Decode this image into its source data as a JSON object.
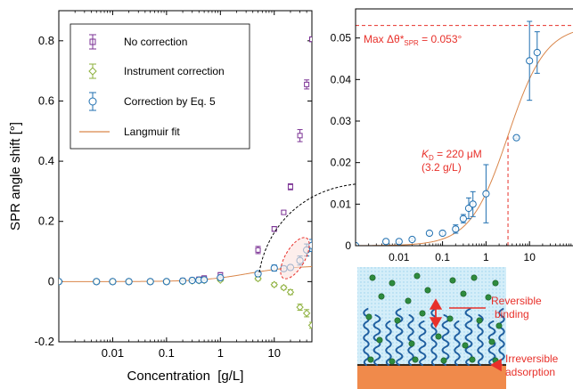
{
  "chart_data": [
    {
      "type": "scatter",
      "xlabel": "Concentration  [g/L]",
      "ylabel": "SPR angle shift [°]",
      "x_scale": "log",
      "xlim": [
        0.001,
        50
      ],
      "ylim": [
        -0.2,
        0.9
      ],
      "x_ticks": [
        0.01,
        0.1,
        1,
        10
      ],
      "x_tick_labels": [
        "0.01",
        "0.1",
        "1",
        "10"
      ],
      "y_ticks": [
        -0.2,
        0,
        0.2,
        0.4,
        0.6,
        0.8
      ],
      "y_tick_labels": [
        "-0.2",
        "0",
        "0.2",
        "0.4",
        "0.6",
        "0.8"
      ],
      "legend_position": "top-left",
      "series": [
        {
          "name": "No correction",
          "color": "#7b3294",
          "marker": "square",
          "x": [
            0.001,
            0.005,
            0.01,
            0.02,
            0.05,
            0.1,
            0.2,
            0.3,
            0.4,
            0.5,
            1,
            5,
            10,
            15,
            20,
            30,
            40,
            50
          ],
          "y": [
            0,
            0,
            0,
            0,
            0,
            0,
            0.003,
            0.005,
            0.008,
            0.012,
            0.022,
            0.105,
            0.175,
            0.23,
            0.315,
            0.485,
            0.655,
            0.805
          ],
          "err": [
            0,
            0,
            0,
            0,
            0,
            0,
            0.003,
            0.003,
            0.004,
            0.005,
            0.008,
            0.012,
            0.008,
            0.006,
            0.01,
            0.02,
            0.015,
            0.008
          ]
        },
        {
          "name": "Instrument correction",
          "color": "#8db03c",
          "marker": "diamond",
          "x": [
            0.001,
            0.005,
            0.01,
            0.02,
            0.05,
            0.1,
            0.2,
            0.3,
            0.4,
            0.5,
            1,
            5,
            10,
            15,
            20,
            30,
            40,
            50
          ],
          "y": [
            0,
            0,
            0,
            0,
            0,
            0,
            0,
            0.002,
            0.003,
            0.004,
            0.005,
            0.01,
            -0.01,
            -0.02,
            -0.035,
            -0.085,
            -0.105,
            -0.145
          ],
          "err": [
            0,
            0,
            0,
            0,
            0,
            0,
            0.002,
            0.002,
            0.003,
            0.003,
            0.004,
            0.006,
            0.006,
            0.006,
            0.008,
            0.01,
            0.012,
            0.01
          ]
        },
        {
          "name": "Correction by Eq. 5",
          "color": "#1f6fb0",
          "marker": "circle",
          "x": [
            0.001,
            0.005,
            0.01,
            0.02,
            0.05,
            0.1,
            0.2,
            0.3,
            0.4,
            0.5,
            1,
            5,
            10,
            15,
            20,
            30,
            40,
            50
          ],
          "y": [
            0,
            0,
            0,
            0,
            0,
            0,
            0.002,
            0.004,
            0.005,
            0.006,
            0.013,
            0.026,
            0.045,
            0.043,
            0.047,
            0.07,
            0.105,
            0.12
          ],
          "err": [
            0,
            0,
            0,
            0,
            0,
            0,
            0.001,
            0.002,
            0.003,
            0.003,
            0.006,
            0.003,
            0.01,
            0.008,
            0.008,
            0.015,
            0.02,
            0.02
          ]
        },
        {
          "name": "Langmuir fit",
          "color": "#d9864a",
          "marker": "line",
          "model": "langmuir",
          "params": {
            "theta_max": 0.053,
            "K_D": 3.2
          }
        }
      ]
    },
    {
      "type": "scatter",
      "x_scale": "log",
      "xlim": [
        0.001,
        100
      ],
      "ylim": [
        0,
        0.057
      ],
      "x_ticks": [
        0.01,
        0.1,
        1,
        10
      ],
      "x_tick_labels": [
        "0.01",
        "0.1",
        "1",
        "10"
      ],
      "y_ticks": [
        0,
        0.01,
        0.02,
        0.03,
        0.04,
        0.05
      ],
      "y_tick_labels": [
        "0",
        "0.01",
        "0.02",
        "0.03",
        "0.04",
        "0.05"
      ],
      "series": [
        {
          "name": "Correction by Eq. 5",
          "color": "#1f6fb0",
          "marker": "circle",
          "x": [
            0.001,
            0.005,
            0.01,
            0.02,
            0.05,
            0.1,
            0.2,
            0.3,
            0.4,
            0.5,
            1,
            5,
            10,
            15
          ],
          "y": [
            0,
            0.001,
            0.001,
            0.0015,
            0.003,
            0.003,
            0.004,
            0.0065,
            0.009,
            0.01,
            0.0125,
            0.026,
            0.0445,
            0.0465
          ],
          "err": [
            0,
            0,
            0,
            0.0003,
            0.0005,
            0.0005,
            0.001,
            0.001,
            0.0025,
            0.003,
            0.007,
            0.0002,
            0.0095,
            0.005
          ]
        },
        {
          "name": "Langmuir fit",
          "color": "#d9864a",
          "marker": "line",
          "model": "langmuir",
          "params": {
            "theta_max": 0.053,
            "K_D": 3.2
          }
        }
      ],
      "annotations": [
        {
          "text": "Max Δθ*SPR = 0.053°",
          "y": 0.053,
          "color": "#e8302a"
        },
        {
          "text": "KD = 220 μM",
          "x": 3.2,
          "color": "#e8302a"
        },
        {
          "text": "(3.2 g/L)",
          "x": 3.2,
          "color": "#e8302a"
        }
      ]
    }
  ],
  "main_plot": {
    "legend": [
      {
        "label": "No correction",
        "color": "#7b3294",
        "marker": "square"
      },
      {
        "label": "Instrument correction",
        "color": "#8db03c",
        "marker": "diamond"
      },
      {
        "label": "Correction by Eq. 5",
        "color": "#1f6fb0",
        "marker": "circle"
      },
      {
        "label": "Langmuir fit",
        "color": "#d9864a",
        "marker": "line"
      }
    ]
  },
  "inset_plot": {
    "max_label": {
      "prefix": "Max Δθ*",
      "sub": "SPR",
      "suffix": " = 0.053°"
    },
    "kd_label": {
      "k": "K",
      "sub": "D",
      "value": " = 220 μM",
      "paren": "(3.2 g/L)"
    }
  },
  "illustration": {
    "reversible_label_line1": "Reversible",
    "reversible_label_line2": "binding",
    "irreversible_label_line1": "Irreversible",
    "irreversible_label_line2": "adsorption",
    "colors": {
      "solution": "#bfe3f4",
      "brush": "#1f5fa0",
      "molecule": "#2e8b3e",
      "substrate": "#f08a4b",
      "arrow": "#e8302a"
    }
  }
}
